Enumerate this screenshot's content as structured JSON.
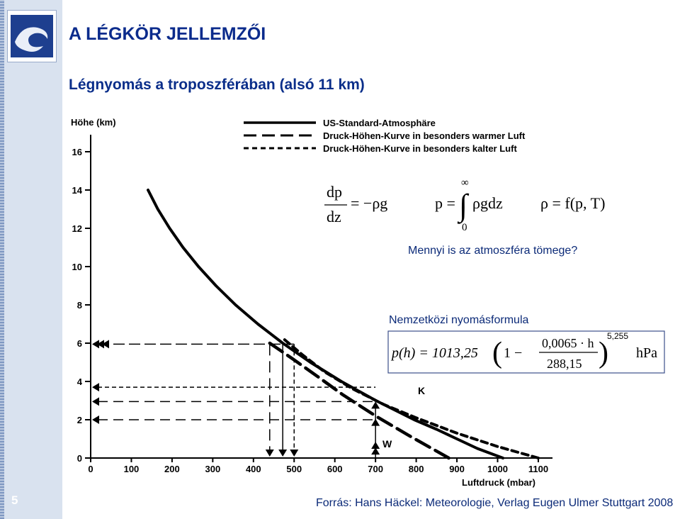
{
  "slide": {
    "title": "A LÉGKÖR JELLEMZŐI",
    "subtitle": "Légnyomás a troposzférában (alsó 11 km)",
    "page_number": "5",
    "source": "Forrás: Hans Häckel: Meteorologie, Verlag Eugen Ulmer Stuttgart 2008"
  },
  "legend": [
    {
      "label": "US-Standard-Atmosphäre",
      "style": "solid"
    },
    {
      "label": "Druck-Höhen-Kurve in besonders warmer Luft",
      "style": "long-dash"
    },
    {
      "label": "Druck-Höhen-Kurve in besonders kalter Luft",
      "style": "short-dash"
    }
  ],
  "equations": {
    "hydrostatic": {
      "numerator": "dp",
      "denominator": "dz",
      "rhs": "= −ρg"
    },
    "integral": {
      "lhs": "p =",
      "upper": "∞",
      "lower": "0",
      "integrand": "ρgdz"
    },
    "density": {
      "text": "ρ = f(p, T)"
    },
    "question": "Mennyi is az atmoszféra tömege?",
    "formula_label": "Nemzetközi nyomásformula",
    "barometric": {
      "lhs": "p(h) = 1013,25",
      "numerator": "0,0065 · h",
      "denominator": "288,15",
      "one": "1 −",
      "exponent": "5,255",
      "unit": "hPa"
    }
  },
  "chart_data": {
    "type": "line",
    "ylabel": "Höhe (km)",
    "xlabel": "Luftdruck (mbar)",
    "xlim": [
      0,
      1100
    ],
    "ylim": [
      0,
      16
    ],
    "x_ticks": [
      0,
      100,
      200,
      300,
      400,
      500,
      600,
      700,
      800,
      900,
      1000,
      1100
    ],
    "y_ticks": [
      0,
      2,
      4,
      6,
      8,
      10,
      12,
      14,
      16
    ],
    "annotations": [
      "K",
      "W"
    ],
    "series": [
      {
        "name": "US-Standard-Atmosphäre",
        "style": "solid",
        "x": [
          1013,
          950,
          900,
          850,
          795,
          701,
          616,
          540,
          472,
          411,
          356,
          308,
          265,
          227,
          194,
          165,
          141
        ],
        "y": [
          0,
          0.5,
          1.0,
          1.5,
          2,
          3,
          4,
          5,
          6,
          7,
          8,
          9,
          10,
          11,
          12,
          13,
          14
        ]
      },
      {
        "name": "Druck-Höhen-Kurve in besonders warmer Luft",
        "style": "long-dash",
        "x": [
          880,
          780,
          700,
          620,
          555,
          495,
          440
        ],
        "y": [
          0,
          1.2,
          2.2,
          3.3,
          4.3,
          5.2,
          6.0
        ]
      },
      {
        "name": "Druck-Höhen-Kurve in besonders kalter Luft",
        "style": "short-dash",
        "x": [
          1100,
          1000,
          900,
          800,
          720,
          645,
          575,
          520,
          470
        ],
        "y": [
          0,
          0.6,
          1.3,
          2.1,
          2.8,
          3.6,
          4.5,
          5.4,
          6.3
        ]
      }
    ]
  }
}
